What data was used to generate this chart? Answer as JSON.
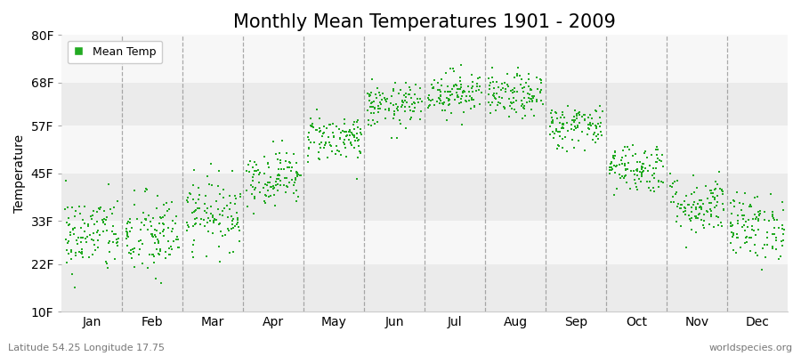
{
  "title": "Monthly Mean Temperatures 1901 - 2009",
  "ylabel": "Temperature",
  "ytick_labels": [
    "10F",
    "22F",
    "33F",
    "45F",
    "57F",
    "68F",
    "80F"
  ],
  "ytick_values": [
    10,
    22,
    33,
    45,
    57,
    68,
    80
  ],
  "ylim": [
    10,
    80
  ],
  "months": [
    "Jan",
    "Feb",
    "Mar",
    "Apr",
    "May",
    "Jun",
    "Jul",
    "Aug",
    "Sep",
    "Oct",
    "Nov",
    "Dec"
  ],
  "dot_color": "#22aa22",
  "background_color": "#ffffff",
  "band_colors_dark": "#ebebeb",
  "band_colors_light": "#f7f7f7",
  "dashed_color": "#888888",
  "title_fontsize": 15,
  "axis_fontsize": 10,
  "footer_left": "Latitude 54.25 Longitude 17.75",
  "footer_right": "worldspecies.org",
  "legend_label": "Mean Temp",
  "mean_temps_f": [
    29.5,
    29.0,
    35.0,
    44.0,
    54.0,
    62.0,
    65.5,
    64.5,
    57.0,
    46.5,
    37.0,
    31.5
  ],
  "std_temps_f": [
    5.0,
    5.5,
    4.5,
    3.5,
    3.0,
    2.8,
    2.8,
    2.8,
    2.8,
    3.2,
    3.8,
    4.2
  ],
  "n_years": 109
}
